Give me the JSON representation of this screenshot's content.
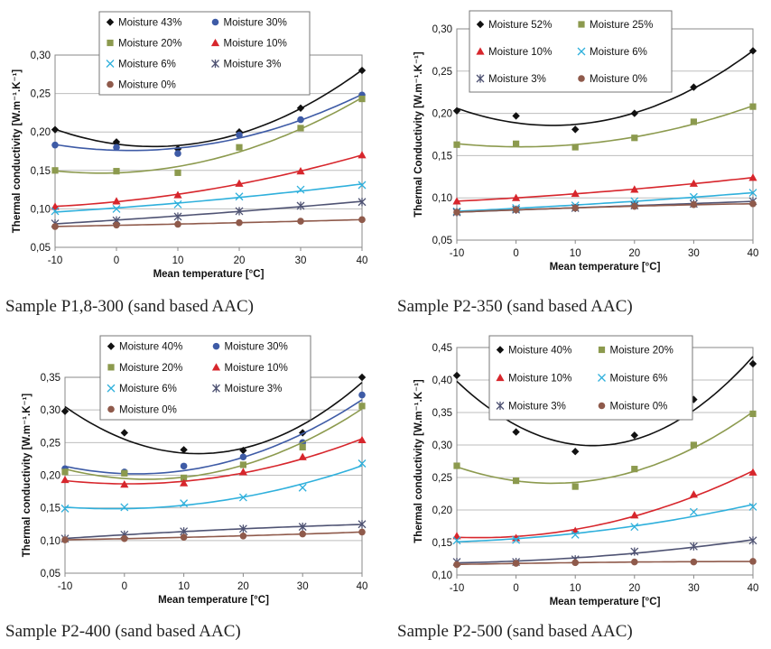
{
  "chart_data": [
    {
      "type": "scatter",
      "caption": "Sample P1,8-300 (sand based AAC)",
      "xlabel": "Mean temperature [°C]",
      "ylabel": "Thermal conductivity [W.m⁻¹.K⁻¹]",
      "xlim": [
        -10,
        40
      ],
      "ylim": [
        0.05,
        0.3
      ],
      "xticks": [
        -10,
        0,
        10,
        20,
        30,
        40
      ],
      "yticks": [
        0.05,
        0.1,
        0.15,
        0.2,
        0.25,
        0.3
      ],
      "ytick_labels": [
        "0,05",
        "0,10",
        "0,15",
        "0,20",
        "0,25",
        "0,30"
      ],
      "x": [
        -10,
        0,
        10,
        20,
        30,
        40
      ],
      "series": [
        {
          "name": "Moisture 43%",
          "values": [
            0.203,
            0.187,
            0.178,
            0.2,
            0.231,
            0.28
          ]
        },
        {
          "name": "Moisture 30%",
          "values": [
            0.183,
            0.18,
            0.172,
            0.196,
            0.216,
            0.248
          ]
        },
        {
          "name": "Moisture 20%",
          "values": [
            0.15,
            0.149,
            0.147,
            0.18,
            0.205,
            0.243
          ]
        },
        {
          "name": "Moisture 10%",
          "values": [
            0.103,
            0.11,
            0.118,
            0.133,
            0.149,
            0.17
          ]
        },
        {
          "name": "Moisture 6%",
          "values": [
            0.097,
            0.1,
            0.106,
            0.116,
            0.125,
            0.131
          ]
        },
        {
          "name": "Moisture 3%",
          "values": [
            0.081,
            0.085,
            0.09,
            0.097,
            0.104,
            0.109
          ]
        },
        {
          "name": "Moisture 0%",
          "values": [
            0.077,
            0.079,
            0.08,
            0.082,
            0.084,
            0.086
          ]
        }
      ]
    },
    {
      "type": "scatter",
      "caption": "Sample P2-350  (sand based AAC)",
      "xlabel": "Mean temperature [°C]",
      "ylabel": "Thermal Conductivity [W.m⁻¹.K⁻¹]",
      "xlim": [
        -10,
        40
      ],
      "ylim": [
        0.05,
        0.3
      ],
      "xticks": [
        -10,
        0,
        10,
        20,
        30,
        40
      ],
      "yticks": [
        0.05,
        0.1,
        0.15,
        0.2,
        0.25,
        0.3
      ],
      "ytick_labels": [
        "0,05",
        "0,10",
        "0,15",
        "0,20",
        "0,25",
        "0,30"
      ],
      "x": [
        -10,
        0,
        10,
        20,
        30,
        40
      ],
      "series": [
        {
          "name": "Moisture 52%",
          "values": [
            0.203,
            0.197,
            0.181,
            0.2,
            0.231,
            0.274
          ]
        },
        {
          "name": "Moisture 25%",
          "values": [
            0.163,
            0.164,
            0.16,
            0.171,
            0.19,
            0.208
          ]
        },
        {
          "name": "Moisture 10%",
          "values": [
            0.096,
            0.1,
            0.105,
            0.11,
            0.117,
            0.124
          ]
        },
        {
          "name": "Moisture 6%",
          "values": [
            0.084,
            0.088,
            0.091,
            0.096,
            0.101,
            0.106
          ]
        },
        {
          "name": "Moisture 3%",
          "values": [
            0.083,
            0.086,
            0.088,
            0.091,
            0.093,
            0.096
          ]
        },
        {
          "name": "Moisture 0%",
          "values": [
            0.083,
            0.086,
            0.088,
            0.09,
            0.092,
            0.093
          ]
        }
      ]
    },
    {
      "type": "scatter",
      "caption": "Sample P2-400  (sand based AAC)",
      "xlabel": "Mean temperature [°C]",
      "ylabel": "Thermal conductivity [W.m⁻¹.K⁻¹]",
      "xlim": [
        -10,
        40
      ],
      "ylim": [
        0.05,
        0.35
      ],
      "xticks": [
        -10,
        0,
        10,
        20,
        30,
        40
      ],
      "yticks": [
        0.05,
        0.1,
        0.15,
        0.2,
        0.25,
        0.3,
        0.35
      ],
      "ytick_labels": [
        "0,05",
        "0,10",
        "0,15",
        "0,20",
        "0,25",
        "0,30",
        "0,35"
      ],
      "x": [
        -10,
        0,
        10,
        20,
        30,
        40
      ],
      "series": [
        {
          "name": "Moisture 40%",
          "values": [
            0.298,
            0.265,
            0.239,
            0.238,
            0.265,
            0.35
          ]
        },
        {
          "name": "Moisture 30%",
          "values": [
            0.21,
            0.205,
            0.214,
            0.228,
            0.25,
            0.323
          ]
        },
        {
          "name": "Moisture 20%",
          "values": [
            0.205,
            0.203,
            0.196,
            0.216,
            0.243,
            0.306
          ]
        },
        {
          "name": "Moisture 10%",
          "values": [
            0.193,
            0.186,
            0.188,
            0.205,
            0.228,
            0.254
          ]
        },
        {
          "name": "Moisture 6%",
          "values": [
            0.149,
            0.151,
            0.157,
            0.166,
            0.181,
            0.218
          ]
        },
        {
          "name": "Moisture 3%",
          "values": [
            0.103,
            0.109,
            0.114,
            0.118,
            0.121,
            0.125
          ]
        },
        {
          "name": "Moisture 0%",
          "values": [
            0.101,
            0.103,
            0.105,
            0.107,
            0.11,
            0.113
          ]
        }
      ]
    },
    {
      "type": "scatter",
      "caption": "Sample P2-500  (sand based AAC)",
      "xlabel": "Mean temperature [°C]",
      "ylabel": "Thermal conductivity [W.m⁻¹.K⁻¹]",
      "xlim": [
        -10,
        40
      ],
      "ylim": [
        0.1,
        0.45
      ],
      "xticks": [
        -10,
        0,
        10,
        20,
        30,
        40
      ],
      "yticks": [
        0.1,
        0.15,
        0.2,
        0.25,
        0.3,
        0.35,
        0.4,
        0.45
      ],
      "ytick_labels": [
        "0,10",
        "0,15",
        "0,20",
        "0,25",
        "0,30",
        "0,35",
        "0,40",
        "0,45"
      ],
      "x": [
        -10,
        0,
        10,
        20,
        30,
        40
      ],
      "series": [
        {
          "name": "Moisture 40%",
          "values": [
            0.407,
            0.32,
            0.29,
            0.315,
            0.37,
            0.425
          ]
        },
        {
          "name": "Moisture 20%",
          "values": [
            0.268,
            0.245,
            0.236,
            0.263,
            0.3,
            0.348
          ]
        },
        {
          "name": "Moisture 10%",
          "values": [
            0.16,
            0.157,
            0.168,
            0.192,
            0.224,
            0.258
          ]
        },
        {
          "name": "Moisture 6%",
          "values": [
            0.153,
            0.154,
            0.162,
            0.174,
            0.197,
            0.205
          ]
        },
        {
          "name": "Moisture 3%",
          "values": [
            0.12,
            0.12,
            0.124,
            0.136,
            0.144,
            0.153
          ]
        },
        {
          "name": "Moisture 0%",
          "values": [
            0.116,
            0.118,
            0.119,
            0.12,
            0.12,
            0.121
          ]
        }
      ]
    }
  ],
  "colors": {
    "Moisture 43%": "#111111",
    "Moisture 52%": "#111111",
    "Moisture 40%": "#111111",
    "Moisture 30%": "#3e5ba6",
    "Moisture 25%": "#8c9a4e",
    "Moisture 20%": "#8c9a4e",
    "Moisture 10%": "#d7262c",
    "Moisture 6%": "#2fb0dc",
    "Moisture 3%": "#4f5373",
    "Moisture 0%": "#8f5a4b",
    "gridline": "#bdbdbd",
    "axis": "#888888",
    "text": "#111111"
  },
  "markers": {
    "Moisture 43%": "diamond",
    "Moisture 52%": "diamond",
    "Moisture 40%": "diamond",
    "Moisture 30%": "circle",
    "Moisture 25%": "square",
    "Moisture 20%": "square",
    "Moisture 10%": "triangle",
    "Moisture 6%": "x",
    "Moisture 3%": "star",
    "Moisture 0%": "circle"
  },
  "legend_column_count": 2
}
